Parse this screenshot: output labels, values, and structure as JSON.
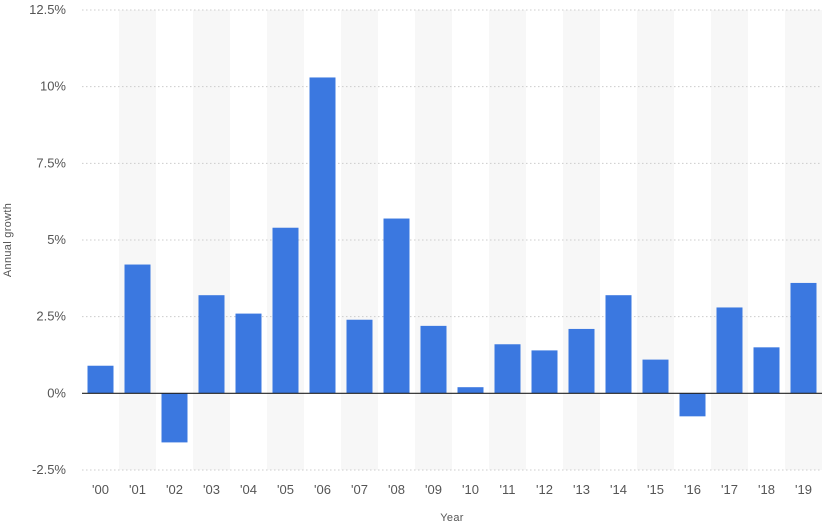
{
  "chart_data": {
    "type": "bar",
    "xlabel": "Year",
    "ylabel": "Annual growth",
    "categories": [
      "'00",
      "'01",
      "'02",
      "'03",
      "'04",
      "'05",
      "'06",
      "'07",
      "'08",
      "'09",
      "'10",
      "'11",
      "'12",
      "'13",
      "'14",
      "'15",
      "'16",
      "'17",
      "'18",
      "'19"
    ],
    "values": [
      0.9,
      4.2,
      -1.6,
      3.2,
      2.6,
      5.4,
      10.3,
      2.4,
      5.7,
      2.2,
      0.2,
      1.6,
      1.4,
      2.1,
      3.2,
      1.1,
      -0.75,
      2.8,
      1.5,
      3.6
    ],
    "ylim": [
      -2.5,
      12.5
    ],
    "yticks": [
      12.5,
      10,
      7.5,
      5,
      2.5,
      0,
      -2.5
    ],
    "ytick_labels": [
      "12.5%",
      "10%",
      "7.5%",
      "5%",
      "2.5%",
      "0%",
      "-2.5%"
    ],
    "grid": true,
    "alternating_column_shading": true,
    "colors": {
      "bar": "#3b78e0",
      "zero_line": "#222222",
      "grid": "#cccccc",
      "band": "#f7f7f7"
    }
  }
}
